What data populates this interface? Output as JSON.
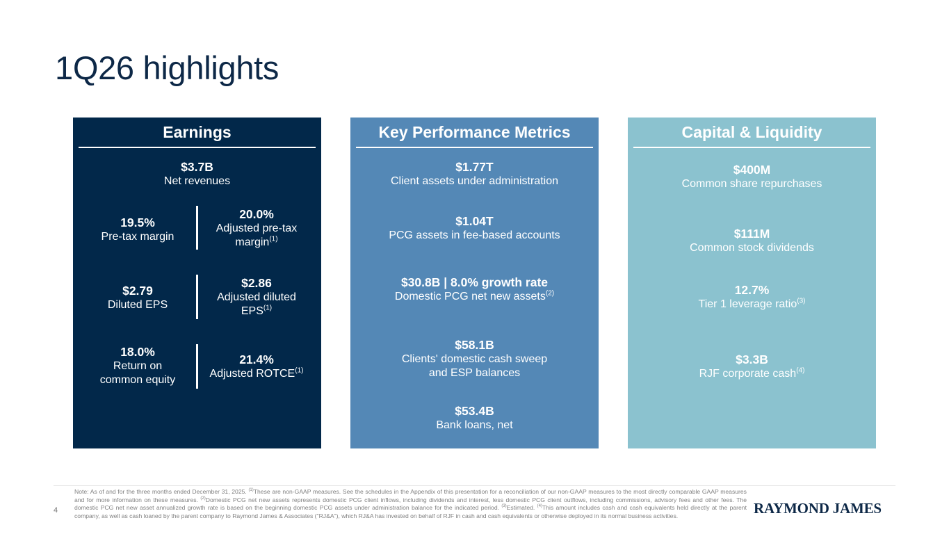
{
  "page": {
    "title": "1Q26 highlights",
    "page_number": "4"
  },
  "earnings": {
    "heading": "Earnings",
    "net_revenues": {
      "value": "$3.7B",
      "label": "Net revenues"
    },
    "rows": [
      {
        "left": {
          "value": "19.5%",
          "label": "Pre-tax margin"
        },
        "right": {
          "value": "20.0%",
          "label": "Adjusted pre-tax",
          "label2": "margin",
          "sup": "(1)"
        }
      },
      {
        "left": {
          "value": "$2.79",
          "label": "Diluted EPS"
        },
        "right": {
          "value": "$2.86",
          "label": "Adjusted diluted",
          "label2": "EPS",
          "sup": "(1)"
        }
      },
      {
        "left": {
          "value": "18.0%",
          "label": "Return on",
          "label2": "common equity"
        },
        "right": {
          "value": "21.4%",
          "label": "Adjusted ROTCE",
          "sup": "(1)"
        }
      }
    ]
  },
  "kpm": {
    "heading": "Key Performance Metrics",
    "items": [
      {
        "value": "$1.77T",
        "label": "Client assets under administration"
      },
      {
        "value": "$1.04T",
        "label": "PCG assets in fee-based accounts"
      },
      {
        "value": "$30.8B | 8.0% growth rate",
        "label": "Domestic PCG net new assets",
        "sup": "(2)"
      },
      {
        "value": "$58.1B",
        "label": "Clients' domestic cash sweep",
        "label2": "and ESP balances"
      },
      {
        "value": "$53.4B",
        "label": "Bank loans, net"
      }
    ]
  },
  "capital": {
    "heading": "Capital & Liquidity",
    "items": [
      {
        "value": "$400M",
        "label": "Common share repurchases"
      },
      {
        "value": "$111M",
        "label": "Common stock dividends"
      },
      {
        "value": "12.7%",
        "label": "Tier 1 leverage ratio",
        "sup": "(3)"
      },
      {
        "value": "$3.3B",
        "label": "RJF corporate cash",
        "sup": "(4)"
      }
    ]
  },
  "footnote": {
    "t0": "Note: As of and for the three months ended December 31, 2025. ",
    "s1": "(1)",
    "t1": "These are non-GAAP measures. See the schedules in the Appendix of this presentation for a reconciliation of our non-GAAP measures to the most directly comparable GAAP measures and for more information on these measures. ",
    "s2": "(2)",
    "t2": "Domestic PCG net new assets represents domestic PCG client inflows, including dividends and interest, less domestic PCG client outflows, including commissions, advisory fees and other fees. The domestic PCG net new asset annualized growth rate is based on the beginning domestic PCG assets under administration balance for the indicated period. ",
    "s3": "(3)",
    "t3": "Estimated. ",
    "s4": "(4)",
    "t4": "This amount includes cash and cash equivalents held directly at the parent company, as well as cash loaned by the parent company to Raymond James & Associates (\"RJ&A\"), which RJ&A has invested on behalf of RJF in cash and cash equivalents or otherwise deployed in its normal business activities."
  },
  "logo": {
    "text": "RAYMOND JAMES"
  },
  "colors": {
    "navy": "#02284a",
    "mid_blue": "#5488b6",
    "light_teal": "#8bc2cf",
    "title": "#0d2847"
  }
}
